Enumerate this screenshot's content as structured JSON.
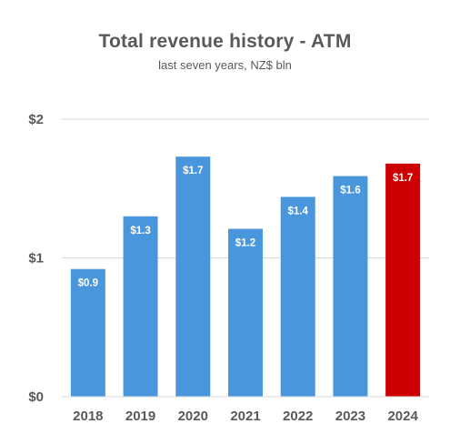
{
  "chart_data": {
    "type": "bar",
    "title": "Total revenue history - ATM",
    "subtitle": "last seven years, NZ$ bln",
    "xlabel": "",
    "ylabel": "",
    "categories": [
      "2018",
      "2019",
      "2020",
      "2021",
      "2022",
      "2023",
      "2024"
    ],
    "values": [
      0.92,
      1.3,
      1.73,
      1.21,
      1.44,
      1.59,
      1.68
    ],
    "data_labels": [
      "$0.9",
      "$1.3",
      "$1.7",
      "$1.2",
      "$1.4",
      "$1.6",
      "$1.7"
    ],
    "ylim": [
      0,
      2
    ],
    "yticks": [
      0,
      1,
      2
    ],
    "ytick_labels": [
      "$0",
      "$1",
      "$2"
    ],
    "grid": true,
    "legend": "none",
    "colors": {
      "default_bar": "#4a96dd",
      "highlight_bar": "#cc0000",
      "gridline": "#d9d9d9",
      "text": "#595959",
      "data_label": "#ffffff"
    },
    "highlight_index": 6
  }
}
